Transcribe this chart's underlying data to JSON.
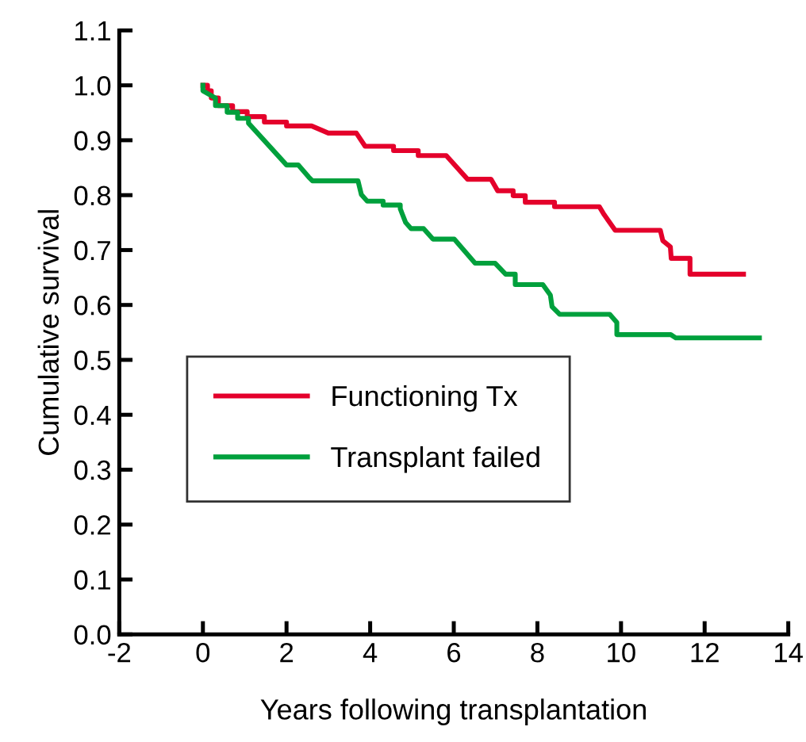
{
  "chart_data": {
    "type": "line",
    "xlabel": "Years following transplantation",
    "ylabel": "Cumulative survival",
    "xlim": [
      -2,
      14
    ],
    "xticks": [
      -2,
      0,
      2,
      4,
      6,
      8,
      10,
      12,
      14
    ],
    "ylim": [
      0,
      1.1
    ],
    "yticks": [
      {
        "value": 0,
        "label": "0.0"
      },
      0.1,
      0.2,
      0.3,
      0.4,
      0.5,
      0.6,
      0.7,
      0.8,
      0.9,
      {
        "value": 1,
        "label": "1.0"
      },
      1.1
    ],
    "grid": false,
    "legend": "left",
    "marker": "none",
    "line_style": "solid",
    "series": [
      {
        "name": "Functioning Tx",
        "color": "#e4002b",
        "x": [
          0,
          0.11,
          0.11,
          0.2,
          0.2,
          0.37,
          0.37,
          0.71,
          0.71,
          1.06,
          1.06,
          1.47,
          1.47,
          2.0,
          2.0,
          2.6,
          3.0,
          3.67,
          3.88,
          4.56,
          4.56,
          5.15,
          5.15,
          5.82,
          6.33,
          6.89,
          7.05,
          7.42,
          7.42,
          7.71,
          7.71,
          8.41,
          8.41,
          9.48,
          9.6,
          9.86,
          10.94,
          11.0,
          11.18,
          11.2,
          11.65,
          11.65,
          12.93
        ],
        "values": [
          1.0,
          1.0,
          0.99,
          0.99,
          0.977,
          0.977,
          0.963,
          0.963,
          0.952,
          0.952,
          0.943,
          0.943,
          0.933,
          0.933,
          0.926,
          0.926,
          0.913,
          0.913,
          0.889,
          0.889,
          0.881,
          0.881,
          0.872,
          0.872,
          0.829,
          0.829,
          0.808,
          0.808,
          0.799,
          0.799,
          0.787,
          0.787,
          0.779,
          0.779,
          0.764,
          0.736,
          0.736,
          0.717,
          0.706,
          0.685,
          0.685,
          0.656,
          0.656
        ]
      },
      {
        "name": "Transplant failed",
        "color": "#00a03c",
        "x": [
          0,
          0,
          0.3,
          0.3,
          0.58,
          0.58,
          0.83,
          0.83,
          1.09,
          1.09,
          2.0,
          2.28,
          2.53,
          2.62,
          3.71,
          3.79,
          3.93,
          4.31,
          4.31,
          4.72,
          4.72,
          4.85,
          4.98,
          5.28,
          5.5,
          6.01,
          6.51,
          6.99,
          7.24,
          7.47,
          7.47,
          8.13,
          8.31,
          8.35,
          8.53,
          9.73,
          9.9,
          9.9,
          11.19,
          11.31,
          13.31
        ],
        "values": [
          1.0,
          0.99,
          0.977,
          0.963,
          0.963,
          0.951,
          0.951,
          0.94,
          0.94,
          0.931,
          0.855,
          0.855,
          0.833,
          0.826,
          0.826,
          0.801,
          0.789,
          0.789,
          0.782,
          0.782,
          0.775,
          0.75,
          0.739,
          0.739,
          0.72,
          0.72,
          0.676,
          0.676,
          0.656,
          0.656,
          0.637,
          0.637,
          0.618,
          0.597,
          0.583,
          0.583,
          0.568,
          0.546,
          0.546,
          0.54,
          0.54
        ]
      }
    ]
  }
}
